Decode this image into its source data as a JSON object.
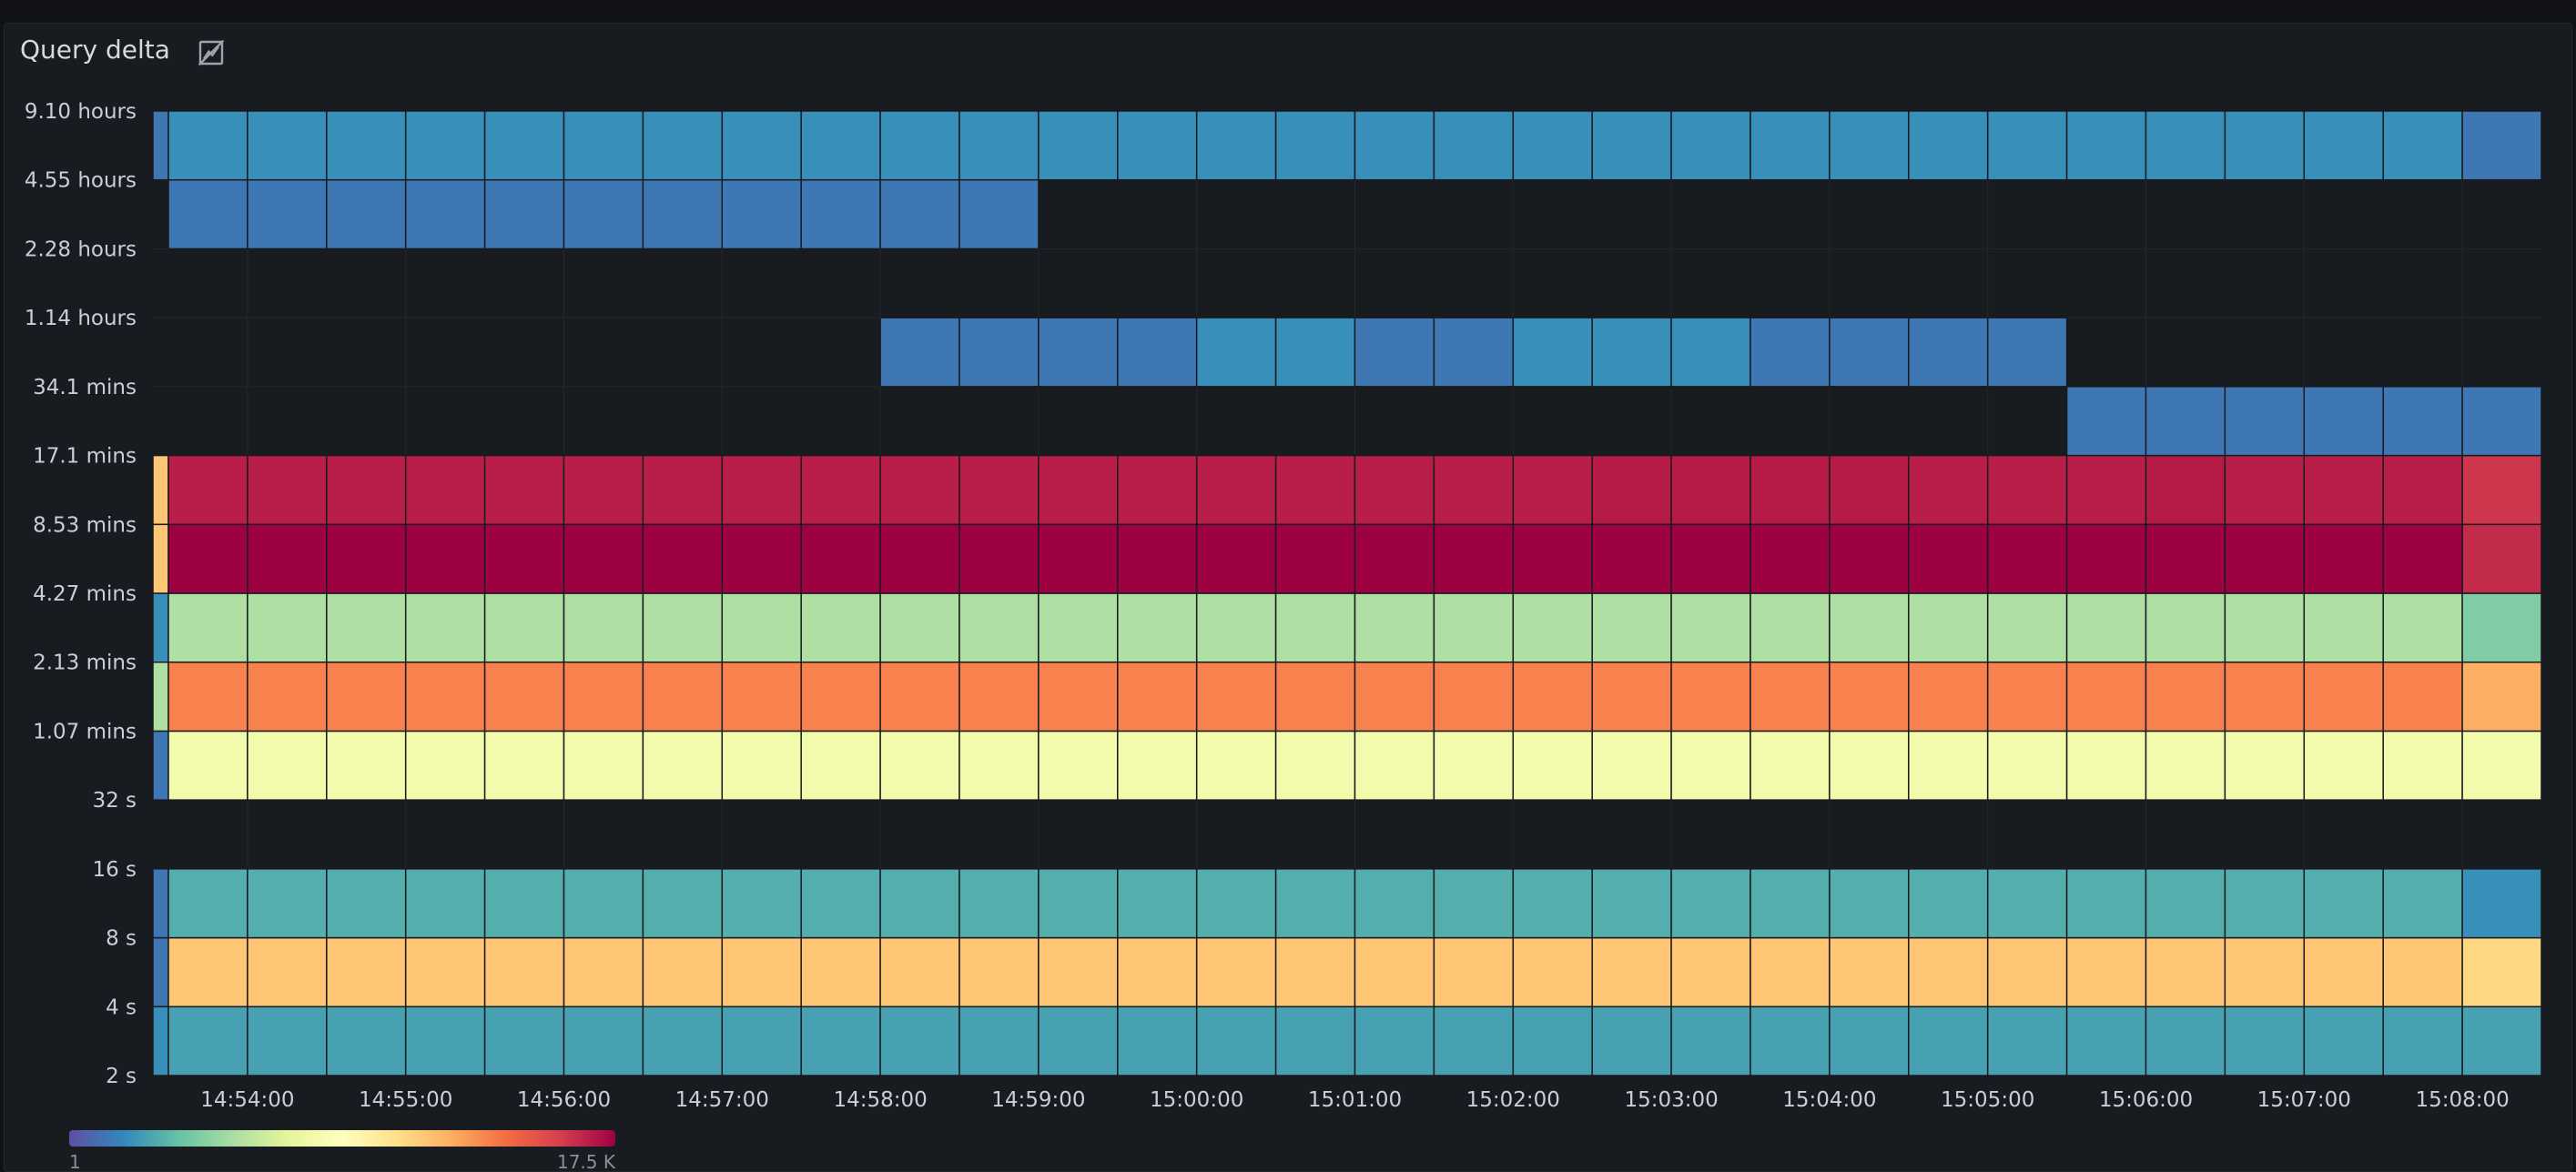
{
  "panel": {
    "title": "Query delta",
    "icon": "chart-off-icon"
  },
  "chart_data": {
    "type": "heatmap",
    "title": "Query delta",
    "y_buckets": [
      "2 s",
      "4 s",
      "8 s",
      "16 s",
      "32 s",
      "1.07 mins",
      "2.13 mins",
      "4.27 mins",
      "8.53 mins",
      "17.1 mins",
      "34.1 mins",
      "1.14 hours",
      "2.28 hours",
      "4.55 hours",
      "9.10 hours"
    ],
    "x_labels": [
      "14:54:00",
      "14:55:00",
      "14:56:00",
      "14:57:00",
      "14:58:00",
      "14:59:00",
      "15:00:00",
      "15:01:00",
      "15:02:00",
      "15:03:00",
      "15:04:00",
      "15:05:00",
      "15:06:00",
      "15:07:00",
      "15:08:00"
    ],
    "columns": 31,
    "column_interval_s": 30,
    "rows": [
      {
        "lower": "2 s",
        "upper": "4 s",
        "values": [
          3,
          4,
          4,
          4,
          4,
          4,
          4,
          4,
          4,
          4,
          4,
          4,
          4,
          4,
          4,
          4,
          4,
          4,
          4,
          4,
          4,
          4,
          4,
          4,
          4,
          4,
          4,
          4,
          4,
          4,
          4
        ]
      },
      {
        "lower": "4 s",
        "upper": "8 s",
        "values": [
          2,
          600,
          600,
          600,
          600,
          600,
          600,
          600,
          600,
          600,
          600,
          600,
          600,
          600,
          600,
          600,
          600,
          600,
          600,
          600,
          600,
          600,
          600,
          600,
          600,
          600,
          600,
          600,
          600,
          600,
          420
        ]
      },
      {
        "lower": "8 s",
        "upper": "16 s",
        "values": [
          2,
          5,
          5,
          5,
          5,
          5,
          5,
          5,
          5,
          5,
          5,
          5,
          5,
          5,
          5,
          5,
          5,
          5,
          5,
          5,
          5,
          5,
          5,
          5,
          5,
          5,
          5,
          5,
          5,
          5,
          3
        ]
      },
      {
        "lower": "16 s",
        "upper": "32 s",
        "values": [
          0,
          0,
          0,
          0,
          0,
          0,
          0,
          0,
          0,
          0,
          0,
          0,
          0,
          0,
          0,
          0,
          0,
          0,
          0,
          0,
          0,
          0,
          0,
          0,
          0,
          0,
          0,
          0,
          0,
          0,
          0
        ]
      },
      {
        "lower": "32 s",
        "upper": "1.07 mins",
        "values": [
          2,
          80,
          80,
          80,
          80,
          80,
          80,
          80,
          80,
          80,
          80,
          80,
          80,
          80,
          80,
          80,
          80,
          80,
          80,
          80,
          80,
          80,
          80,
          80,
          80,
          80,
          80,
          80,
          80,
          80,
          80
        ]
      },
      {
        "lower": "1.07 mins",
        "upper": "2.13 mins",
        "values": [
          20,
          1800,
          1800,
          1800,
          1800,
          1800,
          1800,
          1800,
          1800,
          1800,
          1800,
          1800,
          1800,
          1800,
          1800,
          1800,
          1800,
          1800,
          1800,
          1800,
          1800,
          1800,
          1800,
          1800,
          1800,
          1800,
          1800,
          1800,
          1800,
          1800,
          900
        ]
      },
      {
        "lower": "2.13 mins",
        "upper": "4.27 mins",
        "values": [
          3,
          20,
          20,
          20,
          20,
          20,
          20,
          20,
          20,
          20,
          20,
          20,
          20,
          20,
          20,
          20,
          20,
          20,
          20,
          20,
          20,
          20,
          20,
          20,
          20,
          20,
          20,
          20,
          20,
          20,
          10
        ]
      },
      {
        "lower": "4.27 mins",
        "upper": "8.53 mins",
        "values": [
          600,
          17500,
          17500,
          17500,
          17500,
          17500,
          17500,
          17500,
          17500,
          17500,
          17500,
          17500,
          17500,
          17500,
          17500,
          17500,
          17500,
          17500,
          17500,
          17500,
          17500,
          17500,
          17500,
          17500,
          17500,
          17500,
          17500,
          17500,
          17500,
          17500,
          9000
        ]
      },
      {
        "lower": "8.53 mins",
        "upper": "17.1 mins",
        "values": [
          600,
          11000,
          11000,
          11000,
          11000,
          11000,
          11000,
          11000,
          11000,
          11000,
          11000,
          11000,
          11000,
          11000,
          11000,
          11000,
          11000,
          11000,
          11000,
          11500,
          11500,
          11500,
          11500,
          11000,
          11000,
          11000,
          11500,
          11000,
          11000,
          11000,
          7500
        ]
      },
      {
        "lower": "17.1 mins",
        "upper": "34.1 mins",
        "values": [
          0,
          0,
          0,
          0,
          0,
          0,
          0,
          0,
          0,
          0,
          0,
          0,
          0,
          0,
          0,
          0,
          0,
          0,
          0,
          0,
          0,
          0,
          0,
          0,
          0,
          2,
          2,
          2,
          2,
          2,
          2
        ]
      },
      {
        "lower": "34.1 mins",
        "upper": "1.14 hours",
        "values": [
          0,
          0,
          0,
          0,
          0,
          0,
          0,
          0,
          0,
          0,
          2,
          2,
          2,
          2,
          3,
          3,
          2,
          2,
          3,
          3,
          3,
          2,
          2,
          2,
          2,
          0,
          0,
          0,
          0,
          0,
          0
        ]
      },
      {
        "lower": "1.14 hours",
        "upper": "2.28 hours",
        "values": [
          0,
          0,
          0,
          0,
          0,
          0,
          0,
          0,
          0,
          0,
          0,
          0,
          0,
          0,
          0,
          0,
          0,
          0,
          0,
          0,
          0,
          0,
          0,
          0,
          0,
          0,
          0,
          0,
          0,
          0,
          0
        ]
      },
      {
        "lower": "2.28 hours",
        "upper": "4.55 hours",
        "values": [
          0,
          2,
          2,
          2,
          2,
          2,
          2,
          2,
          2,
          2,
          2,
          2,
          0,
          0,
          0,
          0,
          0,
          0,
          0,
          0,
          0,
          0,
          0,
          0,
          0,
          0,
          0,
          0,
          0,
          0,
          0
        ]
      },
      {
        "lower": "4.55 hours",
        "upper": "9.10 hours",
        "values": [
          2,
          3,
          3,
          3,
          3,
          3,
          3,
          3,
          3,
          3,
          3,
          3,
          3,
          3,
          3,
          3,
          3,
          3,
          3,
          3,
          3,
          3,
          3,
          3,
          3,
          3,
          3,
          3,
          3,
          3,
          2
        ]
      }
    ],
    "color_scale": {
      "scheme": "Spectral",
      "scale": "log",
      "min": 1,
      "max": 17500,
      "min_label": "1",
      "max_label": "17.5 K",
      "empty_color": "#181b1f"
    },
    "legend": {
      "placement": "bottom-left"
    },
    "grid": true
  }
}
